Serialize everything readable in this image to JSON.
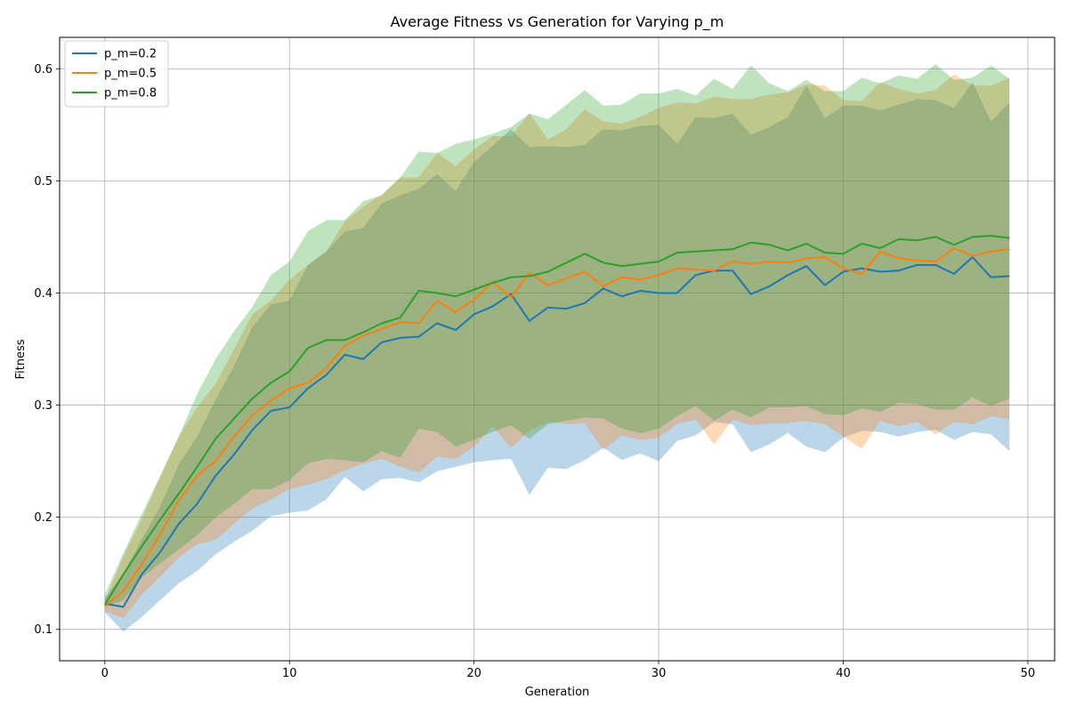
{
  "chart_data": {
    "type": "line",
    "title": "Average Fitness vs Generation for Varying p_m",
    "xlabel": "Generation",
    "ylabel": "Fitness",
    "xlim": [
      -2.45,
      51.45
    ],
    "ylim": [
      0.072,
      0.628
    ],
    "xticks": [
      0,
      10,
      20,
      30,
      40,
      50
    ],
    "yticks": [
      0.1,
      0.2,
      0.3,
      0.4,
      0.5,
      0.6
    ],
    "xtick_labels": [
      "0",
      "10",
      "20",
      "30",
      "40",
      "50"
    ],
    "ytick_labels": [
      "0.1",
      "0.2",
      "0.3",
      "0.4",
      "0.5",
      "0.6"
    ],
    "grid": true,
    "legend_position": "top-left",
    "band_opacity": 0.3,
    "x": [
      0,
      1,
      2,
      3,
      4,
      5,
      6,
      7,
      8,
      9,
      10,
      11,
      12,
      13,
      14,
      15,
      16,
      17,
      18,
      19,
      20,
      21,
      22,
      23,
      24,
      25,
      26,
      27,
      28,
      29,
      30,
      31,
      32,
      33,
      34,
      35,
      36,
      37,
      38,
      39,
      40,
      41,
      42,
      43,
      44,
      45,
      46,
      47,
      48,
      49
    ],
    "series": [
      {
        "name": "p_m=0.2",
        "color": "#1f77b4",
        "mean": [
          0.123,
          0.12,
          0.149,
          0.169,
          0.194,
          0.212,
          0.237,
          0.256,
          0.278,
          0.295,
          0.298,
          0.315,
          0.327,
          0.345,
          0.341,
          0.356,
          0.36,
          0.361,
          0.373,
          0.367,
          0.381,
          0.388,
          0.399,
          0.375,
          0.387,
          0.386,
          0.391,
          0.404,
          0.397,
          0.402,
          0.4,
          0.4,
          0.416,
          0.42,
          0.42,
          0.399,
          0.406,
          0.416,
          0.424,
          0.407,
          0.419,
          0.422,
          0.419,
          0.42,
          0.425,
          0.425,
          0.417,
          0.432,
          0.414,
          0.415
        ],
        "upper": [
          0.128,
          0.15,
          0.18,
          0.21,
          0.247,
          0.272,
          0.305,
          0.335,
          0.37,
          0.39,
          0.393,
          0.425,
          0.437,
          0.455,
          0.458,
          0.48,
          0.487,
          0.493,
          0.506,
          0.491,
          0.517,
          0.531,
          0.546,
          0.53,
          0.531,
          0.53,
          0.532,
          0.546,
          0.545,
          0.549,
          0.55,
          0.533,
          0.557,
          0.556,
          0.56,
          0.541,
          0.548,
          0.557,
          0.585,
          0.556,
          0.567,
          0.567,
          0.563,
          0.568,
          0.573,
          0.572,
          0.565,
          0.588,
          0.553,
          0.57
        ],
        "lower": [
          0.115,
          0.098,
          0.111,
          0.126,
          0.141,
          0.152,
          0.167,
          0.178,
          0.188,
          0.201,
          0.204,
          0.206,
          0.216,
          0.236,
          0.223,
          0.234,
          0.235,
          0.231,
          0.241,
          0.245,
          0.249,
          0.251,
          0.252,
          0.22,
          0.244,
          0.243,
          0.251,
          0.262,
          0.251,
          0.257,
          0.25,
          0.268,
          0.273,
          0.285,
          0.283,
          0.258,
          0.265,
          0.275,
          0.263,
          0.258,
          0.271,
          0.277,
          0.276,
          0.272,
          0.276,
          0.278,
          0.269,
          0.276,
          0.274,
          0.259
        ]
      },
      {
        "name": "p_m=0.5",
        "color": "#ff7f0e",
        "mean": [
          0.121,
          0.134,
          0.158,
          0.185,
          0.215,
          0.237,
          0.25,
          0.272,
          0.291,
          0.304,
          0.315,
          0.32,
          0.333,
          0.353,
          0.362,
          0.368,
          0.374,
          0.373,
          0.393,
          0.383,
          0.394,
          0.41,
          0.396,
          0.418,
          0.407,
          0.413,
          0.419,
          0.406,
          0.414,
          0.412,
          0.416,
          0.422,
          0.421,
          0.42,
          0.428,
          0.426,
          0.428,
          0.427,
          0.431,
          0.432,
          0.422,
          0.417,
          0.437,
          0.431,
          0.429,
          0.428,
          0.44,
          0.433,
          0.437,
          0.439
        ],
        "upper": [
          0.125,
          0.165,
          0.198,
          0.236,
          0.272,
          0.298,
          0.319,
          0.35,
          0.381,
          0.393,
          0.412,
          0.425,
          0.437,
          0.464,
          0.477,
          0.488,
          0.503,
          0.503,
          0.525,
          0.513,
          0.528,
          0.54,
          0.54,
          0.56,
          0.537,
          0.546,
          0.564,
          0.553,
          0.551,
          0.557,
          0.565,
          0.57,
          0.569,
          0.575,
          0.573,
          0.573,
          0.577,
          0.579,
          0.586,
          0.585,
          0.572,
          0.571,
          0.588,
          0.582,
          0.578,
          0.581,
          0.595,
          0.585,
          0.585,
          0.592
        ],
        "lower": [
          0.116,
          0.11,
          0.131,
          0.147,
          0.164,
          0.176,
          0.18,
          0.194,
          0.208,
          0.216,
          0.225,
          0.229,
          0.234,
          0.242,
          0.248,
          0.252,
          0.245,
          0.24,
          0.254,
          0.252,
          0.263,
          0.281,
          0.262,
          0.277,
          0.285,
          0.283,
          0.284,
          0.26,
          0.273,
          0.269,
          0.271,
          0.283,
          0.287,
          0.265,
          0.287,
          0.282,
          0.284,
          0.284,
          0.286,
          0.283,
          0.272,
          0.261,
          0.286,
          0.281,
          0.285,
          0.274,
          0.285,
          0.283,
          0.29,
          0.287
        ]
      },
      {
        "name": "p_m=0.8",
        "color": "#2ca02c",
        "mean": [
          0.122,
          0.149,
          0.174,
          0.198,
          0.221,
          0.245,
          0.27,
          0.288,
          0.306,
          0.32,
          0.33,
          0.351,
          0.358,
          0.358,
          0.365,
          0.373,
          0.378,
          0.402,
          0.4,
          0.397,
          0.403,
          0.409,
          0.414,
          0.415,
          0.419,
          0.427,
          0.435,
          0.427,
          0.424,
          0.426,
          0.428,
          0.436,
          0.437,
          0.438,
          0.439,
          0.445,
          0.443,
          0.438,
          0.444,
          0.436,
          0.435,
          0.444,
          0.44,
          0.448,
          0.447,
          0.45,
          0.443,
          0.45,
          0.451,
          0.449
        ],
        "upper": [
          0.131,
          0.168,
          0.203,
          0.237,
          0.272,
          0.31,
          0.341,
          0.366,
          0.388,
          0.416,
          0.428,
          0.455,
          0.465,
          0.465,
          0.482,
          0.487,
          0.503,
          0.526,
          0.525,
          0.533,
          0.537,
          0.542,
          0.548,
          0.56,
          0.555,
          0.568,
          0.581,
          0.567,
          0.568,
          0.578,
          0.578,
          0.582,
          0.576,
          0.591,
          0.582,
          0.603,
          0.587,
          0.58,
          0.59,
          0.58,
          0.58,
          0.592,
          0.587,
          0.594,
          0.591,
          0.604,
          0.59,
          0.592,
          0.603,
          0.591
        ],
        "lower": [
          0.12,
          0.126,
          0.146,
          0.159,
          0.171,
          0.184,
          0.2,
          0.212,
          0.225,
          0.225,
          0.233,
          0.248,
          0.252,
          0.251,
          0.249,
          0.259,
          0.253,
          0.279,
          0.276,
          0.263,
          0.269,
          0.276,
          0.282,
          0.27,
          0.283,
          0.286,
          0.289,
          0.288,
          0.279,
          0.275,
          0.279,
          0.29,
          0.299,
          0.286,
          0.296,
          0.289,
          0.298,
          0.298,
          0.299,
          0.292,
          0.291,
          0.297,
          0.294,
          0.302,
          0.301,
          0.296,
          0.296,
          0.307,
          0.299,
          0.306
        ]
      }
    ]
  }
}
